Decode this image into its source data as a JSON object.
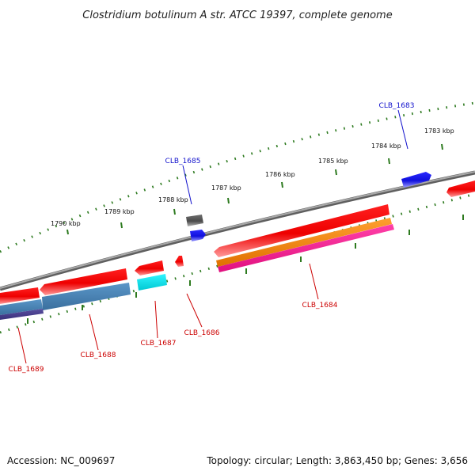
{
  "title": "Clostridium botulinum A str. ATCC 19397, complete genome",
  "footer": {
    "accession": "Accession: NC_009697",
    "summary": "Topology: circular; Length: 3,863,450 bp; Genes: 3,656"
  },
  "scale": {
    "unit": "kbp",
    "tick_labels": [
      "1783 kbp",
      "1784 kbp",
      "1785 kbp",
      "1786 kbp",
      "1787 kbp",
      "1788 kbp",
      "1789 kbp",
      "1790 kbp"
    ]
  },
  "genes": [
    {
      "id": "CLB_1683",
      "color": "#1010cc"
    },
    {
      "id": "CLB_1684",
      "color": "#cc0000"
    },
    {
      "id": "CLB_1685",
      "color": "#1010cc"
    },
    {
      "id": "CLB_1686",
      "color": "#cc0000"
    },
    {
      "id": "CLB_1687",
      "color": "#cc0000"
    },
    {
      "id": "CLB_1688",
      "color": "#cc0000"
    },
    {
      "id": "CLB_1689",
      "color": "#cc0000"
    }
  ],
  "colors": {
    "backbone": "#8a8a8a",
    "tick": "#2d7a1f",
    "cds_red": "#ee0000",
    "cds_blue": "#1a1aee",
    "cds_gray": "#555555",
    "orange": "#ff8c00",
    "magenta": "#ff1493",
    "steelblue": "#4682b4",
    "cyan": "#00e5ee",
    "purple": "#483d8b"
  }
}
